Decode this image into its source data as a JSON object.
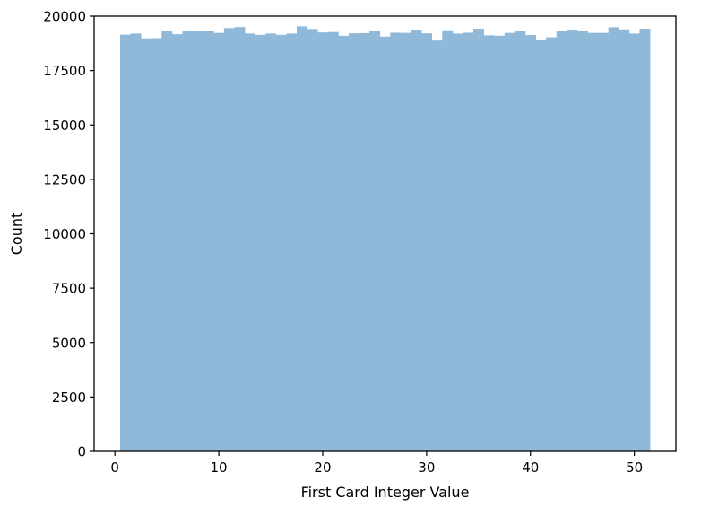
{
  "chart_data": {
    "type": "bar",
    "title": "",
    "xlabel": "First Card Integer Value",
    "ylabel": "Count",
    "xlim": [
      -2,
      54
    ],
    "ylim": [
      0,
      20000
    ],
    "xticks": [
      0,
      10,
      20,
      30,
      40,
      50
    ],
    "xtick_labels": [
      "0",
      "10",
      "20",
      "30",
      "40",
      "50"
    ],
    "yticks": [
      0,
      2500,
      5000,
      7500,
      10000,
      12500,
      15000,
      17500,
      20000
    ],
    "ytick_labels": [
      "0",
      "2500",
      "5000",
      "7500",
      "10000",
      "12500",
      "15000",
      "17500",
      "20000"
    ],
    "bar_color": "#90b8d9",
    "bin_edges": [
      0.5,
      1.5,
      2.5,
      3.5,
      4.5,
      5.5,
      6.5,
      7.5,
      8.5,
      9.5,
      10.5,
      11.5,
      12.5,
      13.5,
      14.5,
      15.5,
      16.5,
      17.5,
      18.5,
      19.5,
      20.5,
      21.5,
      22.5,
      23.5,
      24.5,
      25.5,
      26.5,
      27.5,
      28.5,
      29.5,
      30.5,
      31.5,
      32.5,
      33.5,
      34.5,
      35.5,
      36.5,
      37.5,
      38.5,
      39.5,
      40.5,
      41.5,
      42.5,
      43.5,
      44.5,
      45.5,
      46.5,
      47.5,
      48.5,
      49.5,
      50.5,
      51.5
    ],
    "values": [
      19150,
      19200,
      18980,
      18990,
      19320,
      19170,
      19300,
      19310,
      19300,
      19230,
      19450,
      19500,
      19200,
      19140,
      19200,
      19140,
      19200,
      19530,
      19410,
      19250,
      19270,
      19100,
      19210,
      19220,
      19340,
      19060,
      19240,
      19230,
      19380,
      19210,
      18880,
      19350,
      19200,
      19240,
      19420,
      19120,
      19100,
      19230,
      19340,
      19130,
      18890,
      19030,
      19300,
      19380,
      19330,
      19230,
      19230,
      19490,
      19390,
      19200,
      19420
    ]
  }
}
